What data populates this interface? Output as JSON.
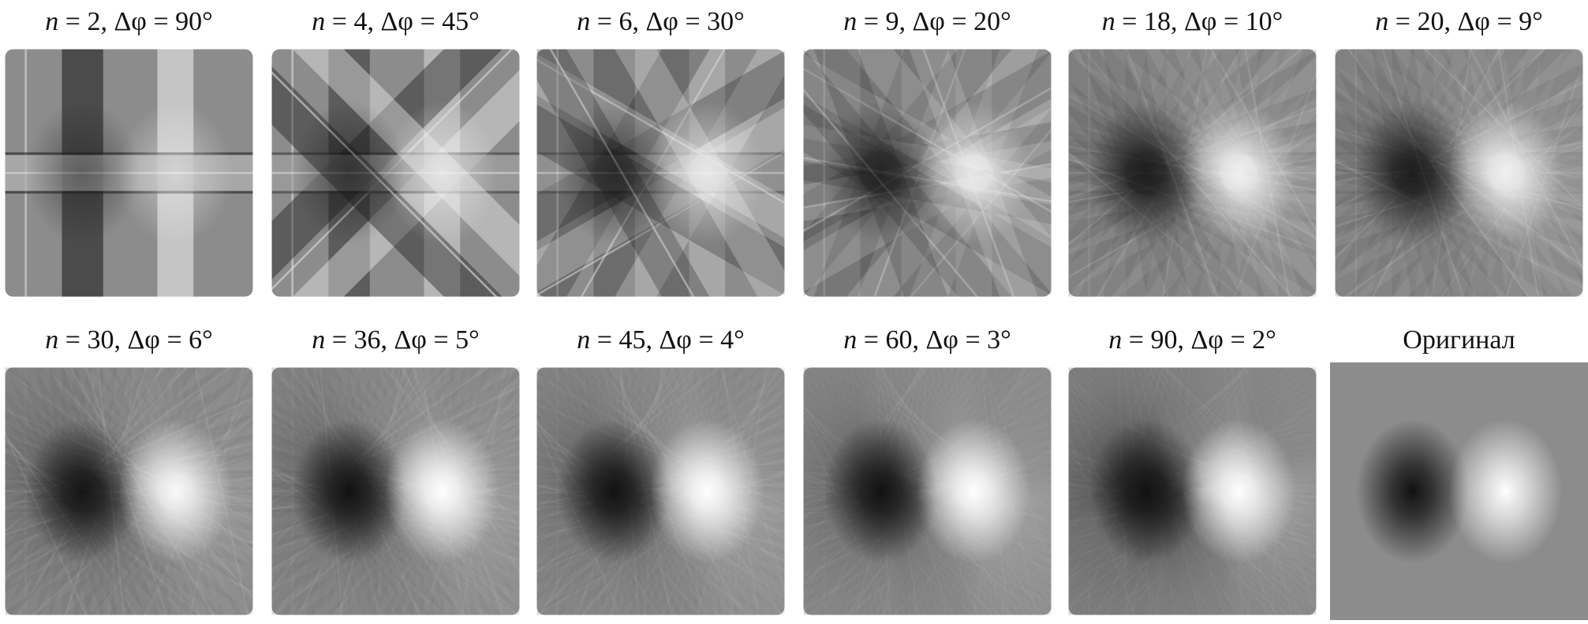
{
  "figure": {
    "n_symbol": "n",
    "dphi_symbol": "Δφ",
    "panels": [
      {
        "n": "2",
        "dphi": "90°",
        "angles": 2
      },
      {
        "n": "4",
        "dphi": "45°",
        "angles": 4
      },
      {
        "n": "6",
        "dphi": "30°",
        "angles": 6
      },
      {
        "n": "9",
        "dphi": "20°",
        "angles": 9
      },
      {
        "n": "18",
        "dphi": "10°",
        "angles": 18
      },
      {
        "n": "20",
        "dphi": "9°",
        "angles": 20
      },
      {
        "n": "30",
        "dphi": "6°",
        "angles": 30
      },
      {
        "n": "36",
        "dphi": "5°",
        "angles": 36
      },
      {
        "n": "45",
        "dphi": "4°",
        "angles": 45
      },
      {
        "n": "60",
        "dphi": "3°",
        "angles": 60
      },
      {
        "n": "90",
        "dphi": "2°",
        "angles": 90
      },
      {
        "title": "Оригинал",
        "original": true
      }
    ]
  }
}
